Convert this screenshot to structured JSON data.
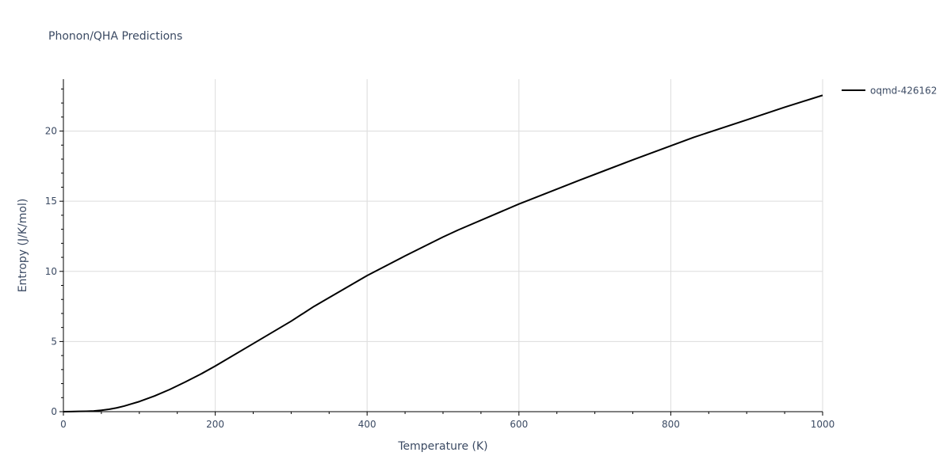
{
  "chart_data": {
    "type": "line",
    "title": "Phonon/QHA Predictions",
    "xlabel": "Temperature (K)",
    "ylabel": "Entropy (J/K/mol)",
    "xlim": [
      0,
      1000
    ],
    "ylim": [
      0,
      23.7
    ],
    "x_ticks": [
      0,
      200,
      400,
      600,
      800,
      1000
    ],
    "x_tick_labels": [
      "0",
      "200",
      "400",
      "600",
      "800",
      "1000"
    ],
    "y_ticks": [
      0,
      5,
      10,
      15,
      20
    ],
    "y_tick_labels": [
      "0",
      "5",
      "10",
      "15",
      "20"
    ],
    "grid": true,
    "legend_position": "top-right",
    "series": [
      {
        "name": "oqmd-426162",
        "color": "#000000",
        "x": [
          0,
          10,
          20,
          30,
          40,
          50,
          60,
          70,
          80,
          90,
          100,
          120,
          140,
          160,
          180,
          200,
          250,
          300,
          330,
          400,
          450,
          500,
          520,
          600,
          680,
          750,
          830,
          900,
          950,
          1000
        ],
        "y": [
          0,
          0.01,
          0.02,
          0.03,
          0.05,
          0.1,
          0.17,
          0.27,
          0.4,
          0.56,
          0.72,
          1.12,
          1.58,
          2.1,
          2.65,
          3.25,
          4.85,
          6.45,
          7.5,
          9.7,
          11.1,
          12.45,
          12.95,
          14.8,
          16.5,
          17.95,
          19.55,
          20.8,
          21.7,
          22.55
        ]
      }
    ]
  }
}
